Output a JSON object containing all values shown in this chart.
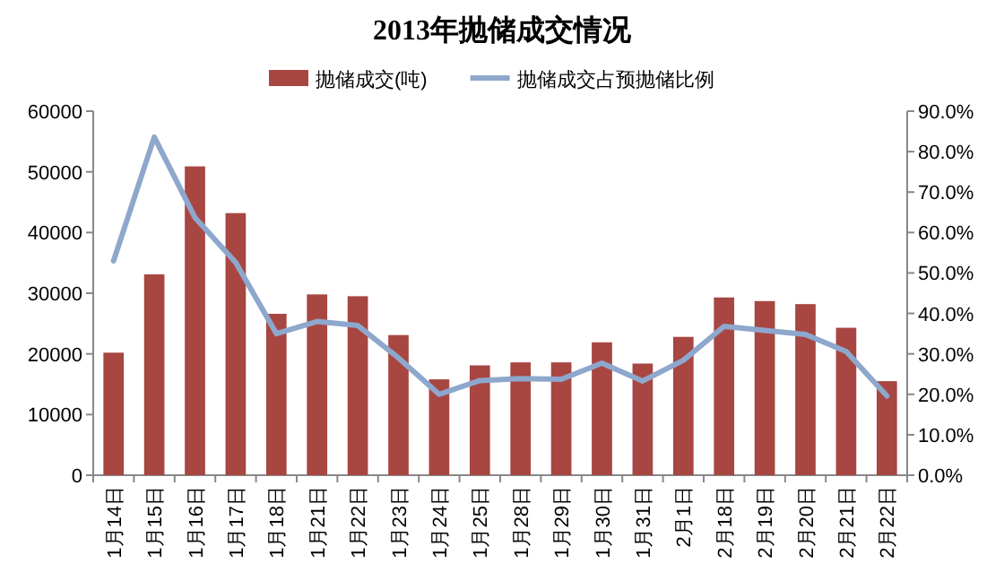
{
  "chart_data": {
    "type": "bar",
    "title": "2013年抛储成交情况",
    "categories": [
      "1月14日",
      "1月15日",
      "1月16日",
      "1月17日",
      "1月18日",
      "1月21日",
      "1月22日",
      "1月23日",
      "1月24日",
      "1月25日",
      "1月28日",
      "1月29日",
      "1月30日",
      "1月31日",
      "2月1日",
      "2月18日",
      "2月19日",
      "2月20日",
      "2月21日",
      "2月22日"
    ],
    "series": [
      {
        "name": "抛储成交(吨)",
        "color": "#a84642",
        "values": [
          20200,
          33100,
          50900,
          43200,
          26600,
          29800,
          29500,
          23100,
          15800,
          18100,
          18600,
          18600,
          21900,
          18400,
          22800,
          29300,
          28700,
          28200,
          24300,
          15500
        ]
      },
      {
        "name": "抛储成交占预抛储比例",
        "type": "line",
        "axis": "y2",
        "color": "#8ea7cc",
        "values": [
          53,
          83.6,
          63.7,
          52.6,
          35,
          38,
          37,
          29,
          20,
          23.4,
          23.9,
          23.7,
          27.7,
          23.3,
          28.4,
          36.8,
          35.8,
          34.8,
          30.6,
          19.6
        ]
      }
    ],
    "ylim": [
      0,
      60000
    ],
    "yticks": [
      0,
      10000,
      20000,
      30000,
      40000,
      50000,
      60000
    ],
    "y2lim": [
      0,
      90
    ],
    "y2ticks": [
      {
        "value": 0,
        "label": "0.0%"
      },
      {
        "value": 10,
        "label": "10.0%"
      },
      {
        "value": 20,
        "label": "20.0%"
      },
      {
        "value": 30,
        "label": "30.0%"
      },
      {
        "value": 40,
        "label": "40.0%"
      },
      {
        "value": 50,
        "label": "50.0%"
      },
      {
        "value": 60,
        "label": "60.0%"
      },
      {
        "value": 70,
        "label": "70.0%"
      },
      {
        "value": 80,
        "label": "80.0%"
      },
      {
        "value": 90,
        "label": "90.0%"
      }
    ],
    "legend": "top",
    "grid": false
  }
}
